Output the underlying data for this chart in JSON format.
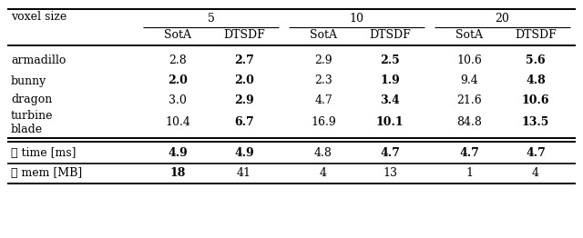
{
  "col_groups": [
    "5",
    "10",
    "20"
  ],
  "sub_cols": [
    "SotA",
    "DTSDF"
  ],
  "row_labels": [
    "armadillo",
    "bunny",
    "dragon",
    "turbine\nblade"
  ],
  "summary_rows": [
    "∅ time [ms]",
    "∅ mem [MB]"
  ],
  "data": [
    [
      "2.8",
      "2.7",
      "2.9",
      "2.5",
      "10.6",
      "5.6"
    ],
    [
      "2.0",
      "2.0",
      "2.3",
      "1.9",
      "9.4",
      "4.8"
    ],
    [
      "3.0",
      "2.9",
      "4.7",
      "3.4",
      "21.6",
      "10.6"
    ],
    [
      "10.4",
      "6.7",
      "16.9",
      "10.1",
      "84.8",
      "13.5"
    ]
  ],
  "summary_data": [
    [
      "4.9",
      "4.9",
      "4.8",
      "4.7",
      "4.7",
      "4.7"
    ],
    [
      "18",
      "41",
      "4",
      "13",
      "1",
      "4"
    ]
  ],
  "bold_data": [
    [
      false,
      true,
      false,
      true,
      false,
      true
    ],
    [
      true,
      true,
      false,
      true,
      false,
      true
    ],
    [
      false,
      true,
      false,
      true,
      false,
      true
    ],
    [
      false,
      true,
      false,
      true,
      false,
      true
    ]
  ],
  "bold_summary": [
    [
      true,
      true,
      false,
      true,
      true,
      true
    ],
    [
      true,
      false,
      false,
      false,
      false,
      false
    ]
  ],
  "figsize": [
    6.4,
    2.62
  ],
  "dpi": 100
}
